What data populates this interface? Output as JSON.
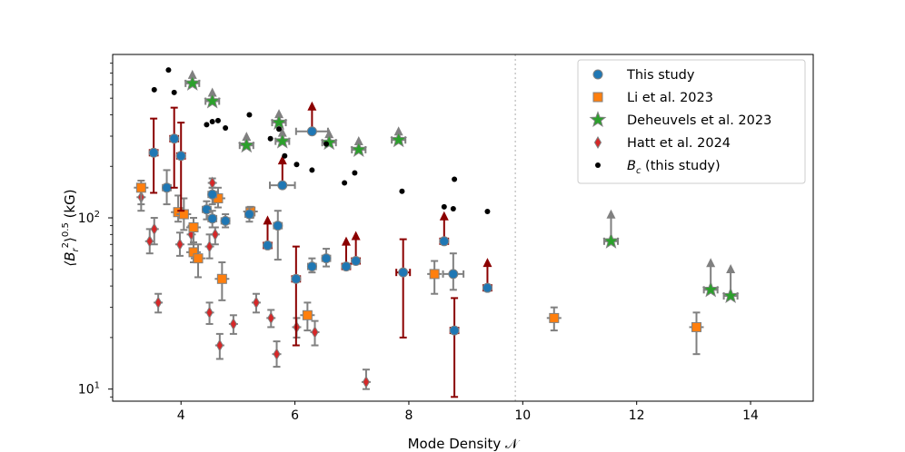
{
  "chart_data": {
    "type": "scatter",
    "xlabel": "Mode Density 𝒩",
    "ylabel_parts": [
      "⟨B",
      "r",
      "2",
      "⟩",
      "0.5",
      " (kG)"
    ],
    "xlim": [
      2.8,
      15.1
    ],
    "ylim": [
      8.5,
      900
    ],
    "yscale": "log",
    "xticks": [
      4,
      6,
      8,
      10,
      12,
      14
    ],
    "yticks": [
      10,
      100
    ],
    "vline_x": 9.87,
    "legend_position": "top-right",
    "colors": {
      "this_study": "#1f77b4",
      "li": "#ff7f0e",
      "deheuvels": "#2ca02c",
      "hatt": "#d62728",
      "bc": "#000000",
      "errbar": "#808080",
      "errbar_dark": "#8b0000",
      "vline": "#c8c8c8"
    },
    "legend": [
      {
        "label": "This study",
        "marker": "circle",
        "color_key": "this_study"
      },
      {
        "label": "Li et al. 2023",
        "marker": "square",
        "color_key": "li"
      },
      {
        "label": "Deheuvels et al. 2023",
        "marker": "star",
        "color_key": "deheuvels"
      },
      {
        "label": "Hatt et al. 2024",
        "marker": "diamond",
        "color_key": "hatt"
      },
      {
        "label_prefix": "B",
        "label_sub": "c",
        "label_suffix": " (this study)",
        "marker": "dot",
        "color_key": "bc"
      }
    ],
    "this_study": [
      {
        "x": 3.52,
        "y": 240,
        "ylo": 140,
        "yhi": 380,
        "dark": true
      },
      {
        "x": 3.75,
        "y": 150,
        "ylo": 120,
        "yhi": 190
      },
      {
        "x": 3.88,
        "y": 290,
        "ylo": 150,
        "yhi": 440,
        "dark": true
      },
      {
        "x": 4.0,
        "y": 230,
        "ylo": 110,
        "yhi": 360,
        "dark": true
      },
      {
        "x": 4.45,
        "y": 112,
        "ylo": 98,
        "yhi": 125
      },
      {
        "x": 4.55,
        "y": 137,
        "ylo": 120,
        "yhi": 150
      },
      {
        "x": 4.55,
        "y": 99,
        "ylo": 88,
        "yhi": 110
      },
      {
        "x": 4.78,
        "y": 96,
        "ylo": 88,
        "yhi": 105
      },
      {
        "x": 5.2,
        "y": 105,
        "ylo": 95,
        "yhi": 115
      },
      {
        "x": 5.52,
        "y": 69,
        "ylo": 65,
        "yhi": 73,
        "arrow": true
      },
      {
        "x": 5.7,
        "y": 90,
        "ylo": 57,
        "yhi": 110
      },
      {
        "x": 5.78,
        "y": 155,
        "ylo": 150,
        "yhi": 160,
        "xerr": 0.22,
        "arrow": true
      },
      {
        "x": 6.02,
        "y": 44,
        "ylo": 18,
        "yhi": 68,
        "dark": true
      },
      {
        "x": 6.3,
        "y": 320,
        "ylo": 300,
        "yhi": 340,
        "xerr": 0.28,
        "arrow": true
      },
      {
        "x": 6.3,
        "y": 52,
        "ylo": 48,
        "yhi": 58
      },
      {
        "x": 6.55,
        "y": 58,
        "ylo": 52,
        "yhi": 66
      },
      {
        "x": 6.9,
        "y": 52,
        "ylo": 49,
        "yhi": 55,
        "arrow": true
      },
      {
        "x": 7.07,
        "y": 56,
        "ylo": 52,
        "yhi": 60,
        "arrow": true
      },
      {
        "x": 7.9,
        "y": 48,
        "ylo": 20,
        "yhi": 75,
        "dark": true,
        "xerr": 0.12
      },
      {
        "x": 8.62,
        "y": 73,
        "ylo": 70,
        "yhi": 76,
        "arrow": true
      },
      {
        "x": 8.78,
        "y": 47,
        "ylo": 38,
        "yhi": 62,
        "xerr": 0.18
      },
      {
        "x": 8.8,
        "y": 22,
        "ylo": 9,
        "yhi": 34,
        "dark": true
      },
      {
        "x": 9.38,
        "y": 39,
        "ylo": 37,
        "yhi": 41,
        "arrow": true
      }
    ],
    "li": [
      {
        "x": 3.3,
        "y": 150,
        "ylo": 110,
        "yhi": 165
      },
      {
        "x": 3.95,
        "y": 108,
        "ylo": 95,
        "yhi": 135
      },
      {
        "x": 4.05,
        "y": 105,
        "ylo": 85,
        "yhi": 130
      },
      {
        "x": 4.22,
        "y": 88,
        "ylo": 72,
        "yhi": 100
      },
      {
        "x": 4.22,
        "y": 63,
        "ylo": 55,
        "yhi": 72
      },
      {
        "x": 4.3,
        "y": 58,
        "ylo": 45,
        "yhi": 70
      },
      {
        "x": 4.65,
        "y": 130,
        "ylo": 115,
        "yhi": 150
      },
      {
        "x": 4.72,
        "y": 44,
        "ylo": 33,
        "yhi": 55
      },
      {
        "x": 5.22,
        "y": 109,
        "ylo": 100,
        "yhi": 116
      },
      {
        "x": 6.22,
        "y": 27,
        "ylo": 22,
        "yhi": 32
      },
      {
        "x": 8.45,
        "y": 47,
        "ylo": 36,
        "yhi": 56
      },
      {
        "x": 10.55,
        "y": 26,
        "ylo": 22,
        "yhi": 30
      },
      {
        "x": 13.05,
        "y": 23,
        "ylo": 16,
        "yhi": 28
      }
    ],
    "deheuvels": [
      {
        "x": 4.2,
        "y": 610
      },
      {
        "x": 4.55,
        "y": 480
      },
      {
        "x": 5.15,
        "y": 265
      },
      {
        "x": 5.72,
        "y": 360
      },
      {
        "x": 5.78,
        "y": 280
      },
      {
        "x": 6.6,
        "y": 275
      },
      {
        "x": 7.12,
        "y": 250
      },
      {
        "x": 7.82,
        "y": 285
      },
      {
        "x": 11.55,
        "y": 73
      },
      {
        "x": 13.3,
        "y": 38
      },
      {
        "x": 13.65,
        "y": 35
      }
    ],
    "hatt": [
      {
        "x": 3.3,
        "y": 132,
        "ylo": 120,
        "yhi": 148
      },
      {
        "x": 3.45,
        "y": 73,
        "ylo": 62,
        "yhi": 86
      },
      {
        "x": 3.53,
        "y": 86,
        "ylo": 70,
        "yhi": 100
      },
      {
        "x": 3.6,
        "y": 32,
        "ylo": 28,
        "yhi": 36
      },
      {
        "x": 3.98,
        "y": 70,
        "ylo": 60,
        "yhi": 82
      },
      {
        "x": 4.18,
        "y": 80,
        "ylo": 70,
        "yhi": 90
      },
      {
        "x": 4.5,
        "y": 28,
        "ylo": 24,
        "yhi": 32
      },
      {
        "x": 4.5,
        "y": 68,
        "ylo": 58,
        "yhi": 80
      },
      {
        "x": 4.55,
        "y": 160,
        "ylo": 150,
        "yhi": 170
      },
      {
        "x": 4.6,
        "y": 80,
        "ylo": 70,
        "yhi": 88
      },
      {
        "x": 4.68,
        "y": 18,
        "ylo": 15,
        "yhi": 21
      },
      {
        "x": 4.92,
        "y": 24,
        "ylo": 21,
        "yhi": 27
      },
      {
        "x": 5.32,
        "y": 32,
        "ylo": 28,
        "yhi": 36
      },
      {
        "x": 5.58,
        "y": 26,
        "ylo": 23,
        "yhi": 29
      },
      {
        "x": 5.68,
        "y": 16,
        "ylo": 13.5,
        "yhi": 19
      },
      {
        "x": 6.03,
        "y": 23,
        "ylo": 20,
        "yhi": 26
      },
      {
        "x": 6.35,
        "y": 21.5,
        "ylo": 18,
        "yhi": 25
      },
      {
        "x": 7.25,
        "y": 11,
        "ylo": 10,
        "yhi": 13
      }
    ],
    "bc": [
      {
        "x": 3.53,
        "y": 560
      },
      {
        "x": 3.78,
        "y": 730
      },
      {
        "x": 3.88,
        "y": 540
      },
      {
        "x": 4.45,
        "y": 350
      },
      {
        "x": 4.55,
        "y": 365
      },
      {
        "x": 4.65,
        "y": 370
      },
      {
        "x": 4.78,
        "y": 335
      },
      {
        "x": 5.2,
        "y": 400
      },
      {
        "x": 5.57,
        "y": 290
      },
      {
        "x": 5.72,
        "y": 330
      },
      {
        "x": 5.82,
        "y": 230
      },
      {
        "x": 6.03,
        "y": 205
      },
      {
        "x": 6.3,
        "y": 190
      },
      {
        "x": 6.55,
        "y": 270
      },
      {
        "x": 6.87,
        "y": 160
      },
      {
        "x": 7.05,
        "y": 183
      },
      {
        "x": 7.88,
        "y": 143
      },
      {
        "x": 8.62,
        "y": 116
      },
      {
        "x": 8.78,
        "y": 113
      },
      {
        "x": 8.8,
        "y": 168
      },
      {
        "x": 9.38,
        "y": 109
      }
    ]
  }
}
